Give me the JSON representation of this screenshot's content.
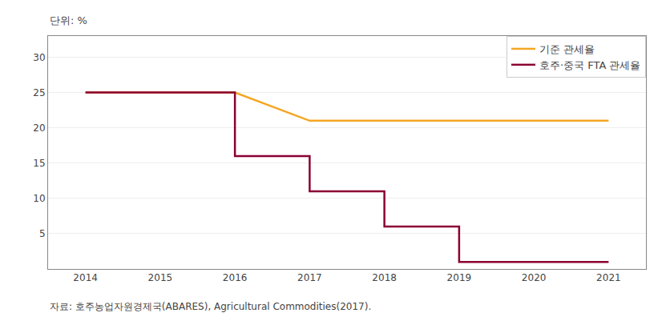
{
  "chart_data": {
    "type": "line",
    "annotations": [
      "단위: %",
      "자료: 호주농업자원경제국(ABARES), Agricultural Commodities(2017)."
    ],
    "series": [
      {
        "name": "기준 관세율",
        "color": "#F5A623",
        "x": [
          2014,
          2016,
          2017,
          2021
        ],
        "values": [
          25,
          25,
          21,
          21
        ]
      },
      {
        "name": "호주·중국 FTA 관세율",
        "color": "#8B0033",
        "x": [
          2014,
          2016,
          2016,
          2017,
          2017,
          2018,
          2018,
          2019,
          2019,
          2021
        ],
        "values": [
          25,
          25,
          16,
          16,
          11,
          11,
          6,
          6,
          1,
          1
        ]
      }
    ],
    "xlim": [
      2013.5,
      2021.5
    ],
    "ylim": [
      0,
      33
    ],
    "xticks": [
      2014,
      2015,
      2016,
      2017,
      2018,
      2019,
      2020,
      2021
    ],
    "yticks": [
      5,
      10,
      15,
      20,
      25,
      30
    ],
    "grid": "y",
    "legend": "upper right"
  }
}
